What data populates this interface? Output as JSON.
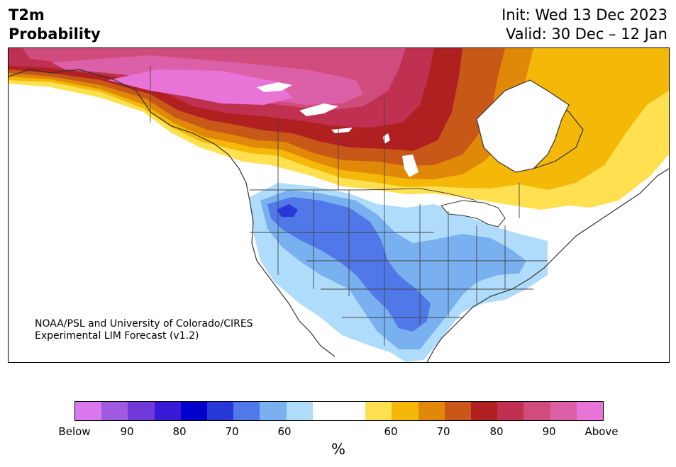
{
  "header": {
    "title_line1": "T2m",
    "title_line2": "Probability",
    "init_text": "Init: Wed 13 Dec 2023",
    "valid_text": "Valid: 30 Dec – 12 Jan"
  },
  "credit": {
    "line1": "NOAA/PSL and University of Colorado/CIRES",
    "line2": "Experimental LIM Forecast (v1.2)"
  },
  "colorbar": {
    "colors": [
      "#d878ec",
      "#a05ae0",
      "#7038d8",
      "#3a18d8",
      "#0000cc",
      "#2838d8",
      "#5078e8",
      "#78b0f0",
      "#b0dcfc",
      "#ffffff",
      "#ffffff",
      "#ffe050",
      "#f4b808",
      "#e08808",
      "#c85818",
      "#b02020",
      "#c03050",
      "#d04c7c",
      "#dc60a8",
      "#e874d8"
    ],
    "ticks": [
      {
        "label": "Below"
      },
      {
        "label": "90"
      },
      {
        "label": "80"
      },
      {
        "label": "70"
      },
      {
        "label": "60"
      },
      {
        "label": "60"
      },
      {
        "label": "70"
      },
      {
        "label": "80"
      },
      {
        "label": "90"
      },
      {
        "label": "Above"
      }
    ],
    "unit": "%"
  }
}
